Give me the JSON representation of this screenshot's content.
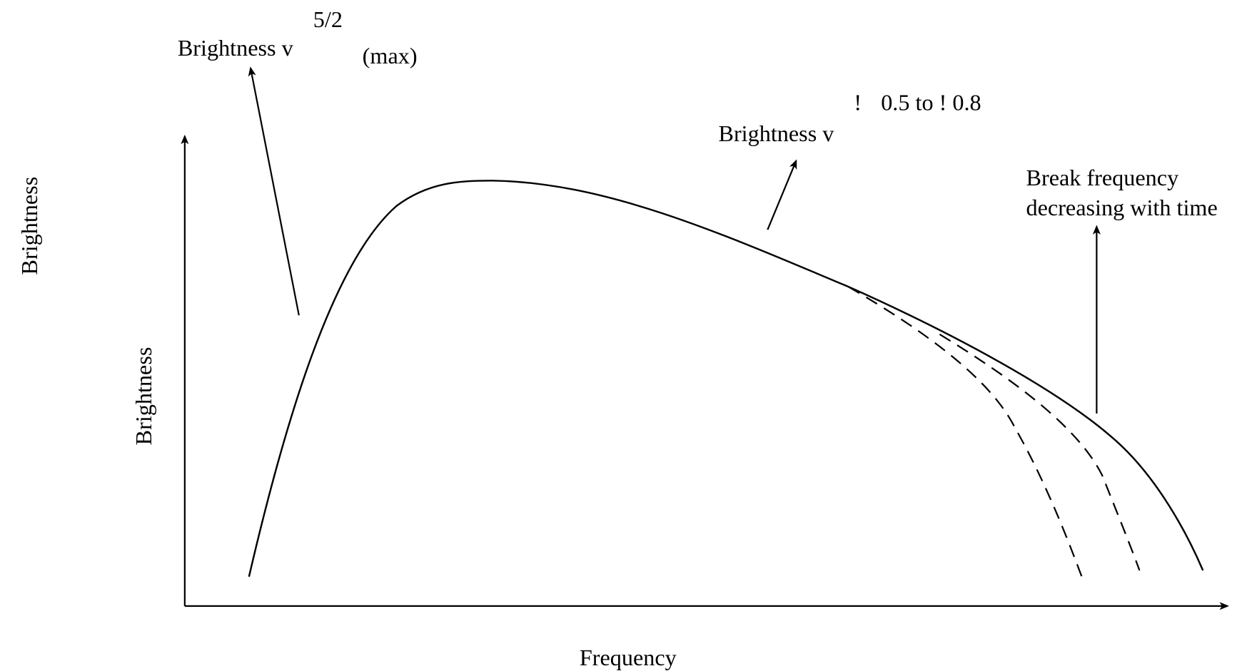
{
  "axes": {
    "y_label_outer": "Brightness",
    "y_label_inner": "Brightness",
    "x_label": "Frequency"
  },
  "annotations": [
    {
      "text": "Brightness v",
      "superscript": "5/2",
      "suffix": "(max)"
    },
    {
      "text": "Brightness v",
      "superscript_mark": "!",
      "superscript": "0.5 to ! 0.8"
    },
    {
      "lines": [
        "Break frequency",
        "decreasing with time"
      ]
    }
  ]
}
